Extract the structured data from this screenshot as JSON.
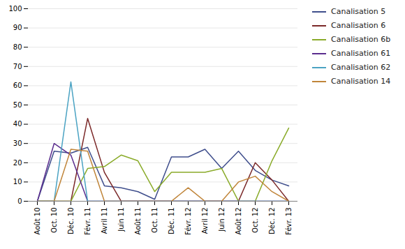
{
  "chart_data": {
    "type": "line",
    "categories": [
      "Août 10",
      "Oct. 10",
      "Déc. 10",
      "Févr. 11",
      "Avril 11",
      "Juin 11",
      "Août 11",
      "Oct. 11",
      "Déc. 11",
      "Févr. 12",
      "Avril 12",
      "Juin 12",
      "Août 12",
      "Oct. 12",
      "Déc. 12",
      "Févr. 13"
    ],
    "series": [
      {
        "name": "Canalisation 5",
        "color": "#3F4E8C",
        "values": [
          0,
          26,
          25,
          28,
          8,
          7,
          5,
          1,
          23,
          23,
          27,
          17,
          26,
          16,
          11,
          8
        ]
      },
      {
        "name": "Canalisation 6",
        "color": "#7B2929",
        "values": [
          0,
          0,
          0,
          43,
          15,
          0,
          0,
          0,
          0,
          0,
          0,
          0,
          0,
          20,
          11,
          0
        ]
      },
      {
        "name": "Canalisation 6b",
        "color": "#8AAB2A",
        "values": [
          0,
          0,
          0,
          17,
          18,
          24,
          21,
          5,
          15,
          15,
          15,
          17,
          0,
          0,
          21,
          38
        ]
      },
      {
        "name": "Canalisation 61",
        "color": "#5B2D8E",
        "values": [
          0,
          30,
          24,
          0,
          0,
          0,
          0,
          0,
          0,
          0,
          0,
          0,
          0,
          0,
          0,
          0
        ]
      },
      {
        "name": "Canalisation 62",
        "color": "#4BA3C3",
        "values": [
          0,
          0,
          62,
          0,
          0,
          0,
          0,
          0,
          0,
          0,
          0,
          0,
          0,
          0,
          0,
          0
        ]
      },
      {
        "name": "Canalisation 14",
        "color": "#C0853A",
        "values": [
          0,
          0,
          27,
          26,
          0,
          0,
          0,
          0,
          0,
          7,
          0,
          0,
          10,
          13,
          5,
          0
        ]
      }
    ],
    "ylim": [
      0,
      100
    ],
    "yticks": [
      0,
      10,
      20,
      30,
      40,
      50,
      60,
      70,
      80,
      90,
      100
    ],
    "grid": true,
    "legend": "right"
  }
}
